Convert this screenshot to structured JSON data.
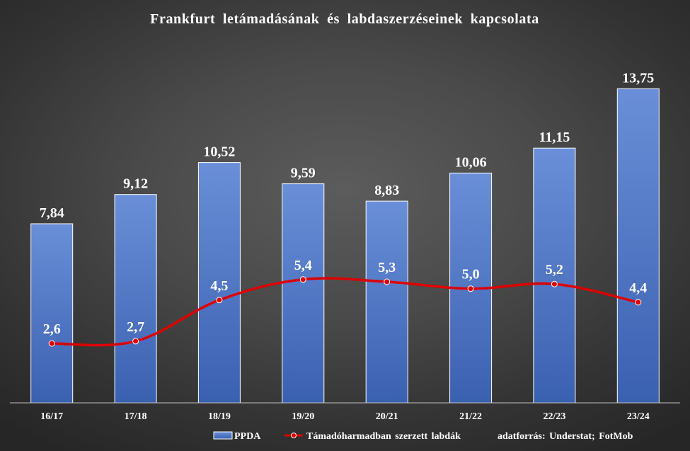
{
  "chart_data": {
    "type": "bar",
    "title": "Frankfurt letámadásának és labdaszerzéseinek kapcsolata",
    "categories": [
      "16/17",
      "17/18",
      "18/19",
      "19/20",
      "20/21",
      "21/22",
      "22/23",
      "23/24"
    ],
    "series": [
      {
        "name": "PPDA",
        "type": "bar",
        "values": [
          7.84,
          9.12,
          10.52,
          9.59,
          8.83,
          10.06,
          11.15,
          13.75
        ],
        "labels": [
          "7,84",
          "9,12",
          "10,52",
          "9,59",
          "8,83",
          "10,06",
          "11,15",
          "13,75"
        ],
        "color": "#4472c4"
      },
      {
        "name": "Támadóharmadban szerzett labdák",
        "type": "line",
        "values": [
          2.6,
          2.7,
          4.5,
          5.4,
          5.3,
          5.0,
          5.2,
          4.4
        ],
        "labels": [
          "2,6",
          "2,7",
          "4,5",
          "5,4",
          "5,3",
          "5,0",
          "5,2",
          "4,4"
        ],
        "color": "#e00000"
      }
    ],
    "ylim": [
      0,
      15
    ],
    "grid": false,
    "legend_position": "bottom"
  },
  "legend": {
    "note": "adatforrás:  Understat;  FotMob"
  },
  "colors": {
    "bar_fill_top": "#6a8fd8",
    "bar_fill_bottom": "#3a60b0",
    "bar_stroke": "#ffffff",
    "line": "#e00000",
    "axis": "#bfbfbf"
  }
}
